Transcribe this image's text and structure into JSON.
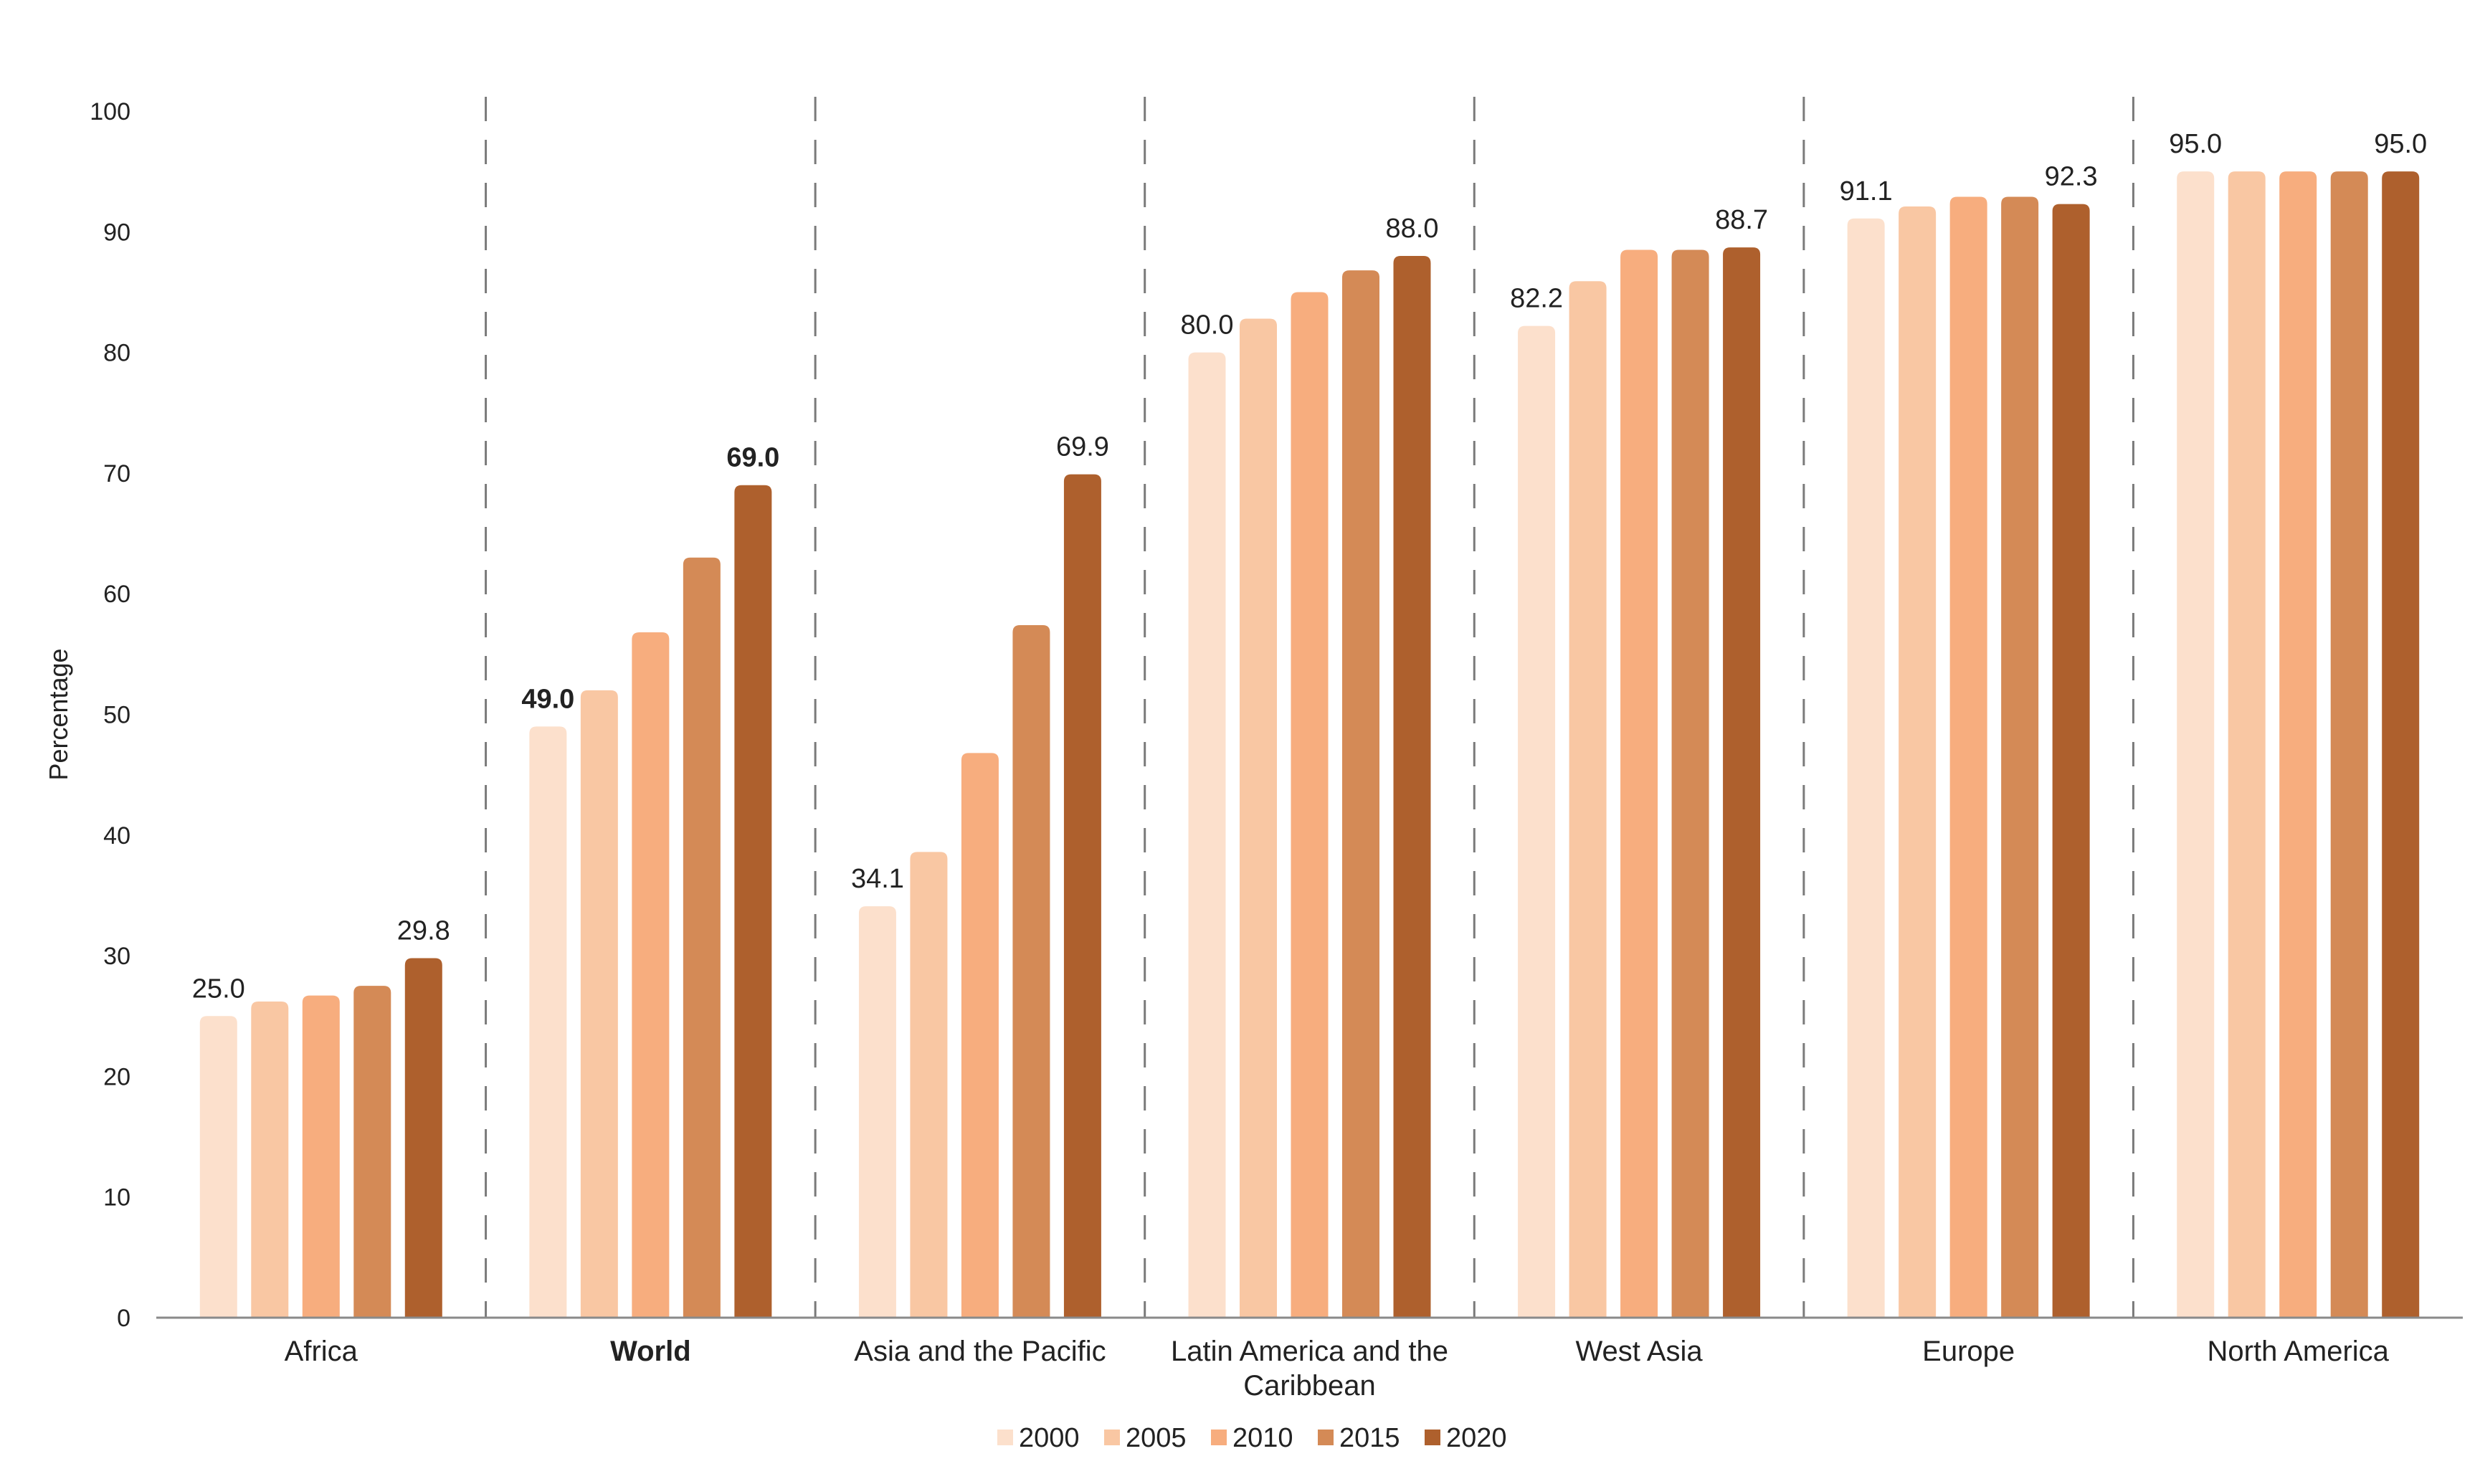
{
  "chart_data": {
    "type": "bar",
    "title": "",
    "xlabel": "",
    "ylabel": "Percentage",
    "ylim": [
      0,
      100
    ],
    "yticks": [
      "0",
      "10",
      "20",
      "30",
      "40",
      "50",
      "60",
      "70",
      "80",
      "90",
      "100"
    ],
    "grid": false,
    "legend_position": "bottom-center",
    "separators": "dashed vertical lines between categories",
    "categories": [
      {
        "label": "Africa",
        "bold": false
      },
      {
        "label": "World",
        "bold": true
      },
      {
        "label": "Asia and the Pacific",
        "bold": false
      },
      {
        "label": "Latin America and the Caribbean",
        "bold": false,
        "lines": [
          "Latin America and the",
          "Caribbean"
        ]
      },
      {
        "label": "West Asia",
        "bold": false
      },
      {
        "label": "Europe",
        "bold": false
      },
      {
        "label": "North America",
        "bold": false
      }
    ],
    "series": [
      {
        "name": "2000",
        "color": "#FCE0CC",
        "values": [
          25.0,
          49.0,
          34.1,
          80.0,
          82.2,
          91.1,
          95.0
        ]
      },
      {
        "name": "2005",
        "color": "#F9C7A3",
        "values": [
          26.2,
          52.0,
          38.6,
          82.8,
          85.9,
          92.1,
          95.0
        ]
      },
      {
        "name": "2010",
        "color": "#F7AD7E",
        "values": [
          26.7,
          56.8,
          46.8,
          85.0,
          88.5,
          92.9,
          95.0
        ]
      },
      {
        "name": "2015",
        "color": "#D48A56",
        "values": [
          27.5,
          63.0,
          57.4,
          86.8,
          88.5,
          92.9,
          95.0
        ]
      },
      {
        "name": "2020",
        "color": "#AE602D",
        "values": [
          29.8,
          69.0,
          69.9,
          88.0,
          88.7,
          92.3,
          95.0
        ]
      }
    ],
    "data_labels": [
      {
        "category_index": 0,
        "series_index": 0,
        "text": "25.0",
        "bold": false
      },
      {
        "category_index": 0,
        "series_index": 4,
        "text": "29.8",
        "bold": false
      },
      {
        "category_index": 1,
        "series_index": 0,
        "text": "49.0",
        "bold": true
      },
      {
        "category_index": 1,
        "series_index": 4,
        "text": "69.0",
        "bold": true
      },
      {
        "category_index": 2,
        "series_index": 0,
        "text": "34.1",
        "bold": false
      },
      {
        "category_index": 2,
        "series_index": 4,
        "text": "69.9",
        "bold": false
      },
      {
        "category_index": 3,
        "series_index": 0,
        "text": "80.0",
        "bold": false
      },
      {
        "category_index": 3,
        "series_index": 4,
        "text": "88.0",
        "bold": false
      },
      {
        "category_index": 4,
        "series_index": 0,
        "text": "82.2",
        "bold": false
      },
      {
        "category_index": 4,
        "series_index": 4,
        "text": "88.7",
        "bold": false
      },
      {
        "category_index": 5,
        "series_index": 0,
        "text": "91.1",
        "bold": false
      },
      {
        "category_index": 5,
        "series_index": 4,
        "text": "92.3",
        "bold": false
      },
      {
        "category_index": 6,
        "series_index": 0,
        "text": "95.0",
        "bold": false
      },
      {
        "category_index": 6,
        "series_index": 4,
        "text": "95.0",
        "bold": false
      }
    ]
  }
}
